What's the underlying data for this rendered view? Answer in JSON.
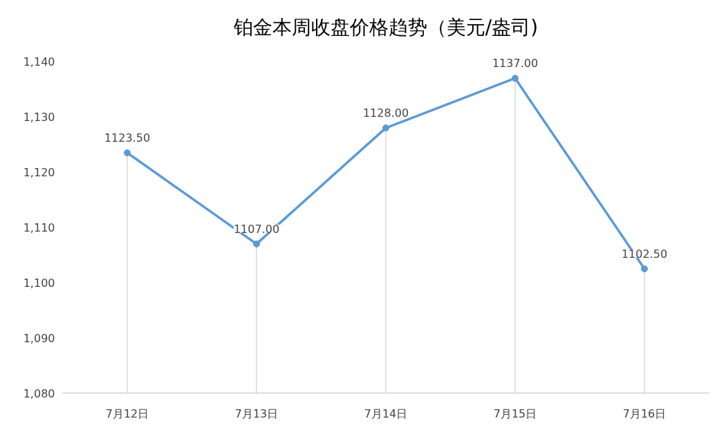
{
  "chart_data": {
    "type": "line",
    "title": "铂金本周收盘价格趋势（美元/盎司)",
    "categories": [
      "7月12日",
      "7月13日",
      "7月14日",
      "7月15日",
      "7月16日"
    ],
    "series": [
      {
        "color": "#5b9bd5",
        "values": [
          1123.5,
          1107.0,
          1128.0,
          1137.0,
          1102.5
        ]
      }
    ],
    "value_labels": [
      "1123.50",
      "1107.00",
      "1128.00",
      "1137.00",
      "1102.50"
    ],
    "ylim": [
      1080,
      1140
    ],
    "yticks": [
      {
        "value": 1080,
        "label": "1,080"
      },
      {
        "value": 1090,
        "label": "1,090"
      },
      {
        "value": 1100,
        "label": "1,100"
      },
      {
        "value": 1110,
        "label": "1,110"
      },
      {
        "value": 1120,
        "label": "1,120"
      },
      {
        "value": 1130,
        "label": "1,130"
      },
      {
        "value": 1140,
        "label": "1,140"
      }
    ],
    "grid": "x",
    "marker": "circle",
    "line_style": "solid"
  }
}
